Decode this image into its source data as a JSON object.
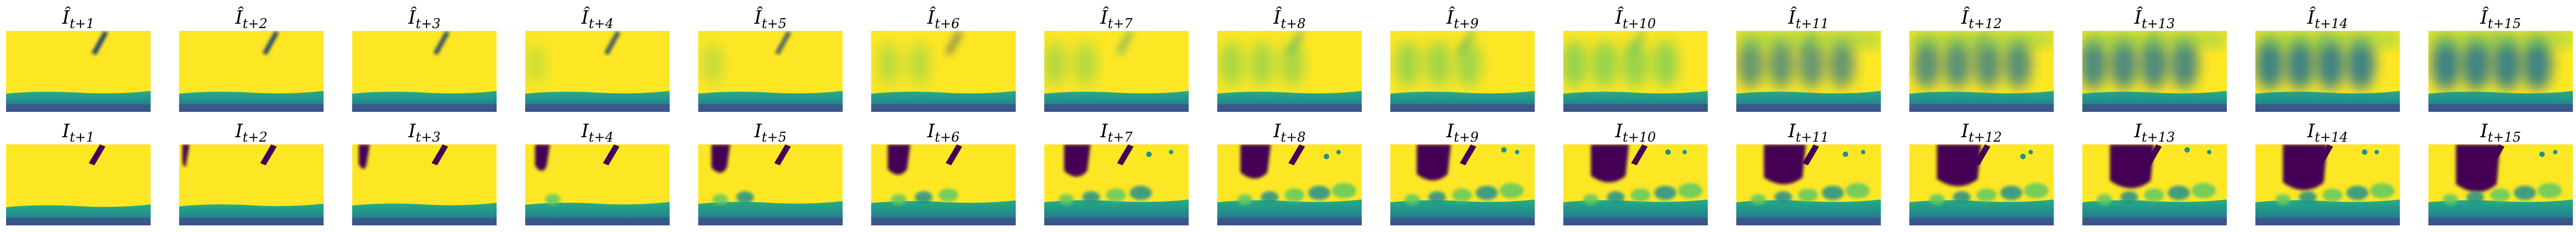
{
  "figure": {
    "rows": [
      {
        "row": "predicted",
        "symbol": "Î",
        "subscripts": [
          "t+1",
          "t+2",
          "t+3",
          "t+4",
          "t+5",
          "t+6",
          "t+7",
          "t+8",
          "t+9",
          "t+10",
          "t+11",
          "t+12",
          "t+13",
          "t+14",
          "t+15"
        ]
      },
      {
        "row": "ground_truth",
        "symbol": "I",
        "subscripts": [
          "t+1",
          "t+2",
          "t+3",
          "t+4",
          "t+5",
          "t+6",
          "t+7",
          "t+8",
          "t+9",
          "t+10",
          "t+11",
          "t+12",
          "t+13",
          "t+14",
          "t+15"
        ]
      }
    ],
    "colormap": {
      "name": "viridis",
      "background": "#fde725",
      "low": "#440154",
      "mid_low": "#3b528b",
      "mid": "#21918c",
      "mid_high": "#5ec962"
    }
  }
}
